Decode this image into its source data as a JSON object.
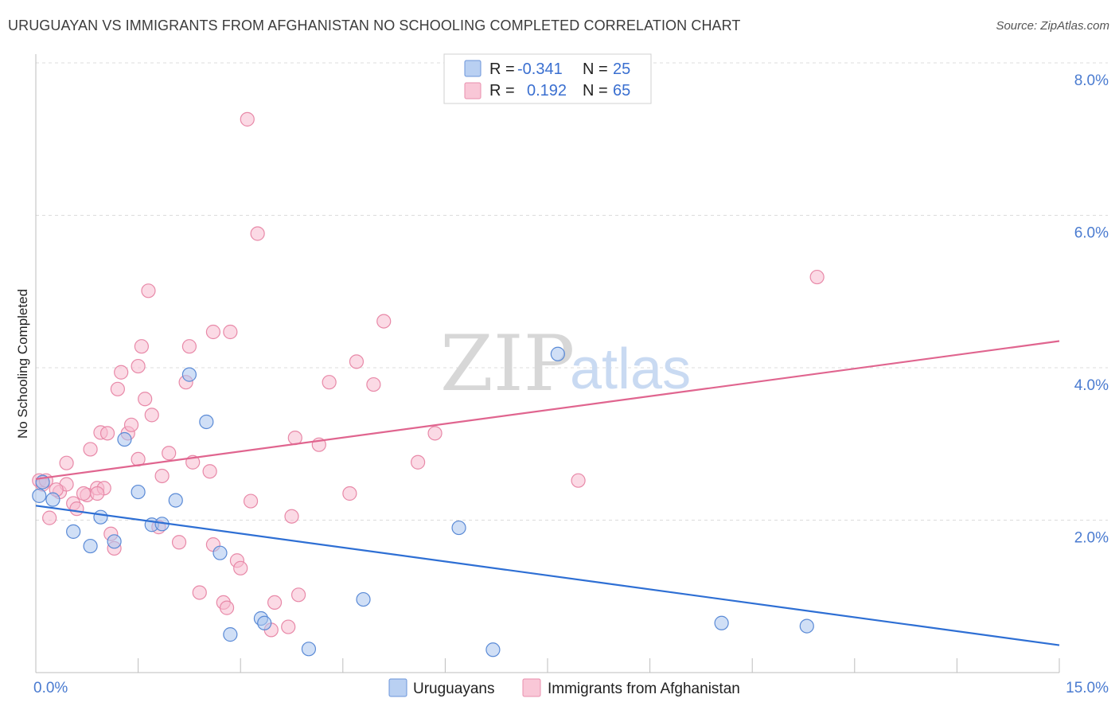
{
  "title": "URUGUAYAN VS IMMIGRANTS FROM AFGHANISTAN NO SCHOOLING COMPLETED CORRELATION CHART",
  "source": "Source: ZipAtlas.com",
  "watermark": {
    "zip": "ZIP",
    "atlas": "atlas"
  },
  "chart_data": {
    "type": "scatter",
    "ylabel": "No Schooling Completed",
    "xlim": [
      0,
      15
    ],
    "ylim": [
      0,
      8
    ],
    "x_tick_labels": [
      {
        "value": 0,
        "label": "0.0%"
      },
      {
        "value": 15,
        "label": "15.0%"
      }
    ],
    "y_tick_labels": [
      {
        "value": 2,
        "label": "2.0%"
      },
      {
        "value": 4,
        "label": "4.0%"
      },
      {
        "value": 6,
        "label": "6.0%"
      },
      {
        "value": 8,
        "label": "8.0%"
      }
    ],
    "grid": "horizontal dashed",
    "legend_position": "top-center",
    "series": [
      {
        "name": "Uruguayans",
        "color": "#a9c4ef",
        "stroke": "#5a8ad6",
        "line_color": "#2e6fd4",
        "r_label": "R =",
        "r": "-0.341",
        "n_label": "N =",
        "n": "25",
        "trend": [
          [
            0,
            2.19
          ],
          [
            15,
            0.36
          ]
        ],
        "points": [
          [
            0.05,
            2.32
          ],
          [
            0.25,
            2.27
          ],
          [
            0.55,
            1.85
          ],
          [
            0.8,
            1.66
          ],
          [
            0.95,
            2.04
          ],
          [
            1.15,
            1.72
          ],
          [
            1.3,
            3.06
          ],
          [
            1.5,
            2.37
          ],
          [
            1.7,
            1.94
          ],
          [
            1.85,
            1.95
          ],
          [
            2.05,
            2.26
          ],
          [
            2.25,
            3.91
          ],
          [
            2.5,
            3.29
          ],
          [
            2.7,
            1.57
          ],
          [
            2.85,
            0.5
          ],
          [
            3.3,
            0.71
          ],
          [
            3.35,
            0.65
          ],
          [
            4.0,
            0.31
          ],
          [
            4.8,
            0.96
          ],
          [
            6.2,
            1.9
          ],
          [
            6.7,
            0.3
          ],
          [
            7.65,
            4.18
          ],
          [
            10.05,
            0.65
          ],
          [
            11.3,
            0.61
          ],
          [
            0.1,
            2.5
          ]
        ]
      },
      {
        "name": "Immigrants from Afghanistan",
        "color": "#f7bcd0",
        "stroke": "#e889a8",
        "line_color": "#e0658f",
        "r_label": "R =",
        "r": "0.192",
        "n_label": "N =",
        "n": "65",
        "trend": [
          [
            0,
            2.54
          ],
          [
            15,
            4.35
          ]
        ],
        "points": [
          [
            0.05,
            2.52
          ],
          [
            0.1,
            2.47
          ],
          [
            0.15,
            2.52
          ],
          [
            0.2,
            2.03
          ],
          [
            0.35,
            2.37
          ],
          [
            0.45,
            2.47
          ],
          [
            0.45,
            2.75
          ],
          [
            0.55,
            2.22
          ],
          [
            0.6,
            2.15
          ],
          [
            0.75,
            2.33
          ],
          [
            0.8,
            2.93
          ],
          [
            0.9,
            2.42
          ],
          [
            0.95,
            3.15
          ],
          [
            1.05,
            3.14
          ],
          [
            1.1,
            1.82
          ],
          [
            1.15,
            1.63
          ],
          [
            1.2,
            3.72
          ],
          [
            1.25,
            3.94
          ],
          [
            1.35,
            3.14
          ],
          [
            1.4,
            3.25
          ],
          [
            1.5,
            4.02
          ],
          [
            1.5,
            2.8
          ],
          [
            1.55,
            4.28
          ],
          [
            1.6,
            3.59
          ],
          [
            1.65,
            5.01
          ],
          [
            1.7,
            3.38
          ],
          [
            1.8,
            1.91
          ],
          [
            1.85,
            2.58
          ],
          [
            1.95,
            2.88
          ],
          [
            2.1,
            1.71
          ],
          [
            2.2,
            3.81
          ],
          [
            2.25,
            4.28
          ],
          [
            2.3,
            2.76
          ],
          [
            2.4,
            1.05
          ],
          [
            2.55,
            2.64
          ],
          [
            2.6,
            1.68
          ],
          [
            2.6,
            4.47
          ],
          [
            2.75,
            0.92
          ],
          [
            2.8,
            0.85
          ],
          [
            2.85,
            4.47
          ],
          [
            2.95,
            1.47
          ],
          [
            3.0,
            1.37
          ],
          [
            3.1,
            7.26
          ],
          [
            3.15,
            2.25
          ],
          [
            3.25,
            5.76
          ],
          [
            3.45,
            0.56
          ],
          [
            3.5,
            0.92
          ],
          [
            3.7,
            0.6
          ],
          [
            3.75,
            2.05
          ],
          [
            3.8,
            3.08
          ],
          [
            3.85,
            1.02
          ],
          [
            4.15,
            2.99
          ],
          [
            4.3,
            3.81
          ],
          [
            4.6,
            2.35
          ],
          [
            4.7,
            4.08
          ],
          [
            4.95,
            3.78
          ],
          [
            5.1,
            4.61
          ],
          [
            5.6,
            2.76
          ],
          [
            5.85,
            3.14
          ],
          [
            7.95,
            2.52
          ],
          [
            11.45,
            5.19
          ],
          [
            0.7,
            2.35
          ],
          [
            1.0,
            2.42
          ],
          [
            0.3,
            2.4
          ],
          [
            0.9,
            2.35
          ]
        ]
      }
    ]
  }
}
